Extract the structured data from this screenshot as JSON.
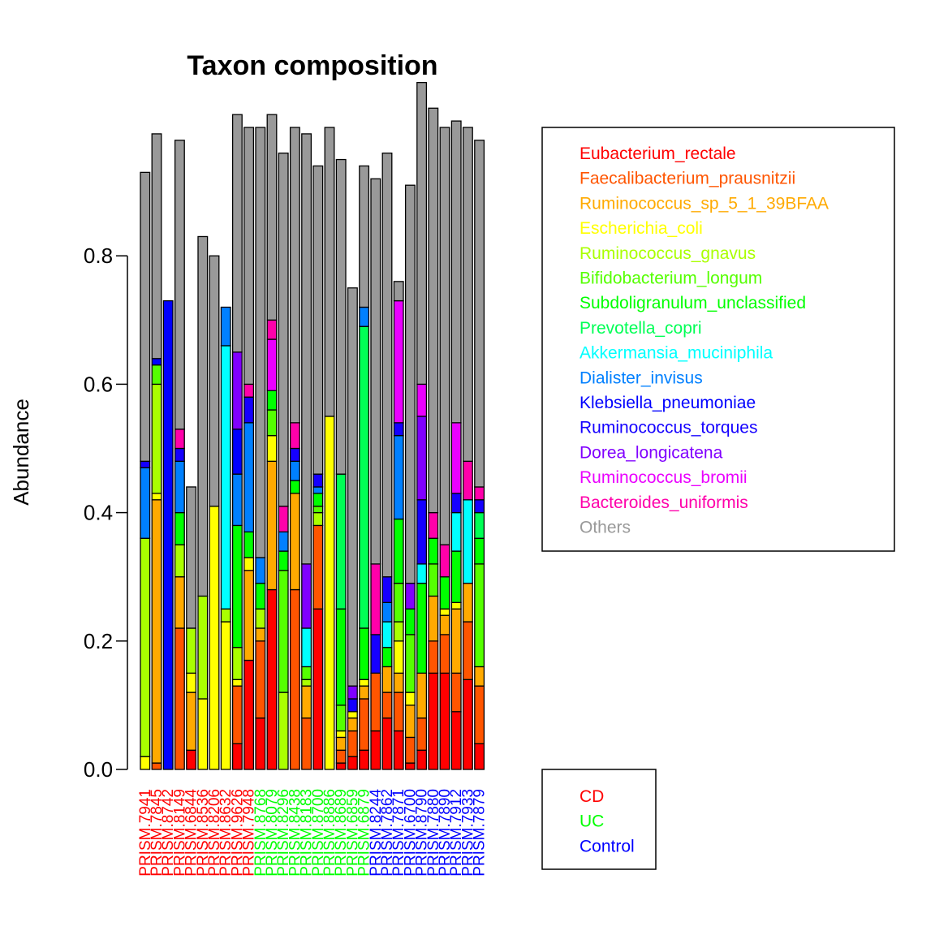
{
  "chart_data": {
    "type": "bar",
    "stacked": true,
    "title": "Taxon composition",
    "xlabel": "",
    "ylabel": "Abundance",
    "ylim": [
      0,
      1
    ],
    "yticks": [
      0.0,
      0.2,
      0.4,
      0.6,
      0.8
    ],
    "ytick_labels": [
      "0.0",
      "0.2",
      "0.4",
      "0.6",
      "0.8"
    ],
    "legend_placement": "top-right",
    "categories": [
      "PRISM.7941",
      "PRISM.7845",
      "PRISM.8742",
      "PRISM.8149",
      "PRISM.6844",
      "PRISM.8536",
      "PRISM.8206",
      "PRISM.8632",
      "PRISM.9626",
      "PRISM.7948",
      "PRISM.8768",
      "PRISM.8079",
      "PRISM.8296",
      "PRISM.8438",
      "PRISM.8183",
      "PRISM.8700",
      "PRISM.8886",
      "PRISM.8689",
      "PRISM.6859",
      "PRISM.6879",
      "PRISM.8244",
      "PRISM.7862",
      "PRISM.7871",
      "PRISM.6700",
      "PRISM.8790",
      "PRISM.7880",
      "PRISM.7890",
      "PRISM.7912",
      "PRISM.7933",
      "PRISM.7879"
    ],
    "group_of_sample": [
      "CD",
      "CD",
      "CD",
      "CD",
      "CD",
      "CD",
      "CD",
      "CD",
      "CD",
      "CD",
      "UC",
      "UC",
      "UC",
      "UC",
      "UC",
      "UC",
      "UC",
      "UC",
      "UC",
      "UC",
      "Control",
      "Control",
      "Control",
      "Control",
      "Control",
      "Control",
      "Control",
      "Control",
      "Control",
      "Control"
    ],
    "group_legend": [
      {
        "name": "CD",
        "color": "#FF0000"
      },
      {
        "name": "UC",
        "color": "#00FF00"
      },
      {
        "name": "Control",
        "color": "#0000FF"
      }
    ],
    "series": [
      {
        "name": "Eubacterium_rectale",
        "color": "#FF0000",
        "values": [
          0.0,
          0.0,
          0.0,
          0.0,
          0.03,
          0.0,
          0.0,
          0.0,
          0.04,
          0.17,
          0.08,
          0.28,
          0.0,
          0.0,
          0.0,
          0.25,
          0.0,
          0.01,
          0.02,
          0.03,
          0.06,
          0.08,
          0.06,
          0.01,
          0.03,
          0.15,
          0.15,
          0.09,
          0.14,
          0.04
        ]
      },
      {
        "name": "Faecalibacterium_prausnitzii",
        "color": "#FF5500",
        "values": [
          0.0,
          0.01,
          0.0,
          0.22,
          0.0,
          0.0,
          0.0,
          0.0,
          0.09,
          0.0,
          0.12,
          0.0,
          0.0,
          0.28,
          0.08,
          0.13,
          0.0,
          0.02,
          0.04,
          0.08,
          0.09,
          0.04,
          0.06,
          0.04,
          0.05,
          0.05,
          0.06,
          0.06,
          0.09,
          0.09
        ]
      },
      {
        "name": "Ruminococcus_sp_5_1_39BFAA",
        "color": "#FFAA00",
        "values": [
          0.0,
          0.41,
          0.0,
          0.08,
          0.09,
          0.0,
          0.0,
          0.0,
          0.0,
          0.14,
          0.02,
          0.2,
          0.0,
          0.15,
          0.05,
          0.0,
          0.0,
          0.02,
          0.02,
          0.02,
          0.0,
          0.04,
          0.03,
          0.05,
          0.07,
          0.07,
          0.03,
          0.1,
          0.06,
          0.03
        ]
      },
      {
        "name": "Escherichia_coli",
        "color": "#FFFF00",
        "values": [
          0.02,
          0.01,
          0.0,
          0.0,
          0.03,
          0.11,
          0.41,
          0.23,
          0.01,
          0.02,
          0.0,
          0.04,
          0.0,
          0.0,
          0.0,
          0.0,
          0.55,
          0.01,
          0.01,
          0.01,
          0.0,
          0.0,
          0.05,
          0.02,
          0.0,
          0.0,
          0.01,
          0.01,
          0.0,
          0.0
        ]
      },
      {
        "name": "Ruminococcus_gnavus",
        "color": "#AAFF00",
        "values": [
          0.34,
          0.17,
          0.0,
          0.05,
          0.07,
          0.16,
          0.0,
          0.02,
          0.05,
          0.0,
          0.03,
          0.0,
          0.12,
          0.0,
          0.01,
          0.02,
          0.0,
          0.0,
          0.0,
          0.0,
          0.0,
          0.0,
          0.03,
          0.0,
          0.0,
          0.0,
          0.0,
          0.0,
          0.0,
          0.0
        ]
      },
      {
        "name": "Bifidobacterium_longum",
        "color": "#55FF00",
        "values": [
          0.0,
          0.03,
          0.0,
          0.0,
          0.0,
          0.0,
          0.0,
          0.0,
          0.0,
          0.0,
          0.0,
          0.04,
          0.19,
          0.0,
          0.02,
          0.01,
          0.0,
          0.04,
          0.0,
          0.0,
          0.0,
          0.0,
          0.06,
          0.09,
          0.0,
          0.05,
          0.0,
          0.0,
          0.0,
          0.16
        ]
      },
      {
        "name": "Subdoligranulum_unclassified",
        "color": "#00FF00",
        "values": [
          0.0,
          0.0,
          0.0,
          0.05,
          0.0,
          0.0,
          0.0,
          0.0,
          0.19,
          0.04,
          0.04,
          0.03,
          0.03,
          0.02,
          0.0,
          0.02,
          0.0,
          0.15,
          0.0,
          0.08,
          0.0,
          0.03,
          0.1,
          0.04,
          0.14,
          0.04,
          0.05,
          0.08,
          0.0,
          0.04
        ]
      },
      {
        "name": "Prevotella_copri",
        "color": "#00FF55",
        "values": [
          0.0,
          0.0,
          0.0,
          0.0,
          0.0,
          0.0,
          0.0,
          0.0,
          0.0,
          0.0,
          0.0,
          0.0,
          0.0,
          0.0,
          0.0,
          0.0,
          0.0,
          0.21,
          0.0,
          0.47,
          0.0,
          0.0,
          0.0,
          0.0,
          0.0,
          0.0,
          0.0,
          0.0,
          0.0,
          0.04
        ]
      },
      {
        "name": "Akkermansia_muciniphila",
        "color": "#00FFFF",
        "values": [
          0.0,
          0.0,
          0.0,
          0.0,
          0.0,
          0.0,
          0.0,
          0.41,
          0.0,
          0.0,
          0.0,
          0.0,
          0.0,
          0.0,
          0.06,
          0.0,
          0.0,
          0.0,
          0.0,
          0.0,
          0.0,
          0.04,
          0.0,
          0.0,
          0.03,
          0.0,
          0.0,
          0.06,
          0.13,
          0.0
        ]
      },
      {
        "name": "Dialister_invisus",
        "color": "#0080FF",
        "values": [
          0.11,
          0.0,
          0.0,
          0.08,
          0.0,
          0.0,
          0.0,
          0.06,
          0.08,
          0.17,
          0.04,
          0.0,
          0.03,
          0.03,
          0.0,
          0.01,
          0.0,
          0.0,
          0.0,
          0.03,
          0.0,
          0.03,
          0.13,
          0.0,
          0.0,
          0.0,
          0.0,
          0.0,
          0.0,
          0.0
        ]
      },
      {
        "name": "Klebsiella_pneumoniae",
        "color": "#0000FF",
        "values": [
          0.0,
          0.01,
          0.73,
          0.0,
          0.0,
          0.0,
          0.0,
          0.0,
          0.07,
          0.0,
          0.0,
          0.0,
          0.0,
          0.0,
          0.0,
          0.0,
          0.0,
          0.0,
          0.0,
          0.0,
          0.0,
          0.0,
          0.0,
          0.0,
          0.0,
          0.0,
          0.0,
          0.0,
          0.0,
          0.0
        ]
      },
      {
        "name": "Ruminococcus_torques",
        "color": "#1500FF",
        "values": [
          0.01,
          0.0,
          0.0,
          0.02,
          0.0,
          0.0,
          0.0,
          0.0,
          0.0,
          0.04,
          0.0,
          0.0,
          0.0,
          0.02,
          0.0,
          0.02,
          0.0,
          0.0,
          0.02,
          0.0,
          0.06,
          0.04,
          0.02,
          0.0,
          0.1,
          0.0,
          0.0,
          0.03,
          0.0,
          0.02
        ]
      },
      {
        "name": "Dorea_longicatena",
        "color": "#8000FF",
        "values": [
          0.0,
          0.0,
          0.0,
          0.0,
          0.0,
          0.0,
          0.0,
          0.0,
          0.12,
          0.0,
          0.0,
          0.0,
          0.0,
          0.0,
          0.1,
          0.0,
          0.0,
          0.0,
          0.02,
          0.0,
          0.0,
          0.0,
          0.0,
          0.04,
          0.13,
          0.0,
          0.0,
          0.0,
          0.0,
          0.0
        ]
      },
      {
        "name": "Ruminococcus_bromii",
        "color": "#EA00FF",
        "values": [
          0.0,
          0.0,
          0.0,
          0.0,
          0.0,
          0.0,
          0.0,
          0.0,
          0.0,
          0.0,
          0.0,
          0.08,
          0.0,
          0.0,
          0.0,
          0.0,
          0.0,
          0.0,
          0.0,
          0.0,
          0.0,
          0.0,
          0.19,
          0.0,
          0.05,
          0.0,
          0.0,
          0.11,
          0.0,
          0.0
        ]
      },
      {
        "name": "Bacteroides_uniformis",
        "color": "#FF00AA",
        "values": [
          0.0,
          0.0,
          0.0,
          0.03,
          0.0,
          0.0,
          0.0,
          0.0,
          0.0,
          0.02,
          0.0,
          0.03,
          0.04,
          0.04,
          0.0,
          0.0,
          0.0,
          0.0,
          0.0,
          0.0,
          0.11,
          0.0,
          0.0,
          0.0,
          0.0,
          0.04,
          0.05,
          0.0,
          0.06,
          0.02
        ]
      },
      {
        "name": "Others",
        "color": "#999999",
        "values": [
          0.45,
          0.35,
          0.0,
          0.45,
          0.22,
          0.56,
          0.39,
          0.0,
          0.37,
          0.4,
          0.67,
          0.32,
          0.55,
          0.46,
          0.67,
          0.48,
          0.45,
          0.49,
          0.62,
          0.22,
          0.6,
          0.66,
          0.03,
          0.62,
          0.47,
          0.63,
          0.65,
          0.47,
          0.52,
          0.54
        ]
      }
    ]
  }
}
